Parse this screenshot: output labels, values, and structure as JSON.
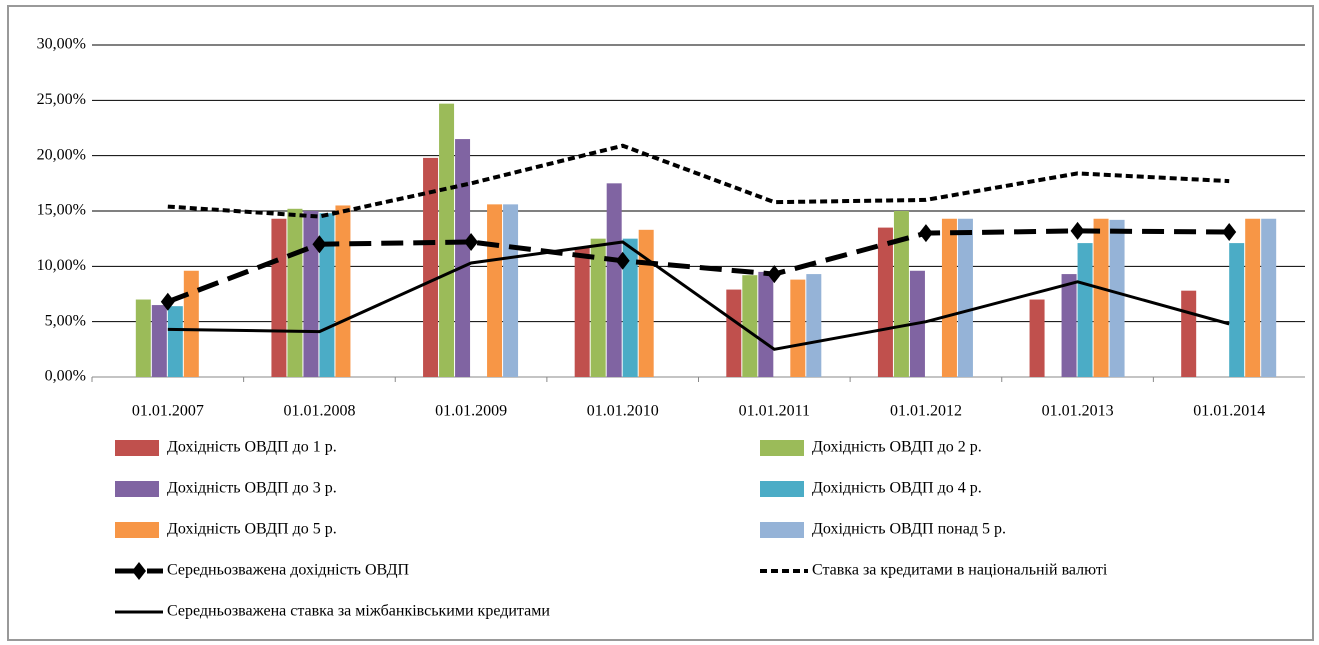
{
  "chart_data": {
    "type": "bar",
    "categories": [
      "01.01.2007",
      "01.01.2008",
      "01.01.2009",
      "01.01.2010",
      "01.01.2011",
      "01.01.2012",
      "01.01.2013",
      "01.01.2014"
    ],
    "ylim": [
      0,
      30
    ],
    "yticks": [
      {
        "value": 0,
        "label": "0,00%"
      },
      {
        "value": 5,
        "label": "5,00%"
      },
      {
        "value": 10,
        "label": "10,00%"
      },
      {
        "value": 15,
        "label": "15,00%"
      },
      {
        "value": 20,
        "label": "20,00%"
      },
      {
        "value": 25,
        "label": "25,00%"
      },
      {
        "value": 30,
        "label": "30,00%"
      }
    ],
    "grid": true,
    "series": [
      {
        "name": "Дохідність ОВДП до 1 р.",
        "type": "bar",
        "color": "#c0504d",
        "values": [
          null,
          14.3,
          19.8,
          11.7,
          7.9,
          13.5,
          7.0,
          7.8
        ]
      },
      {
        "name": "Дохідність ОВДП до 2 р.",
        "type": "bar",
        "color": "#9bbb59",
        "values": [
          7.0,
          15.2,
          24.7,
          12.5,
          9.2,
          15.0,
          null,
          null
        ]
      },
      {
        "name": "Дохідність ОВДП до 3 р.",
        "type": "bar",
        "color": "#8064a2",
        "values": [
          6.5,
          15.0,
          21.5,
          17.5,
          9.5,
          9.6,
          9.3,
          null
        ]
      },
      {
        "name": "Дохідність ОВДП до 4 р.",
        "type": "bar",
        "color": "#4bacc6",
        "values": [
          6.4,
          14.8,
          null,
          12.5,
          null,
          null,
          12.1,
          12.1
        ]
      },
      {
        "name": "Дохідність ОВДП до 5 р.",
        "type": "bar",
        "color": "#f79646",
        "values": [
          9.6,
          15.5,
          15.6,
          13.3,
          8.8,
          14.3,
          14.3,
          14.3
        ]
      },
      {
        "name": "Дохідність ОВДП понад 5 р.",
        "type": "bar",
        "color": "#95b3d7",
        "values": [
          null,
          null,
          15.6,
          null,
          9.3,
          14.3,
          14.2,
          14.3
        ]
      },
      {
        "name": "Середньозважена дохідність ОВДП",
        "type": "line",
        "color": "#000000",
        "dash": "dashed",
        "marker": "diamond",
        "values": [
          6.8,
          12.0,
          12.2,
          10.5,
          9.3,
          13.0,
          13.2,
          13.1
        ]
      },
      {
        "name": "Ставка за кредитами в національній валюті",
        "type": "line",
        "color": "#000000",
        "dash": "dotted",
        "values": [
          15.4,
          14.5,
          17.5,
          20.9,
          15.8,
          16.0,
          18.4,
          17.7
        ]
      },
      {
        "name": "Середньозважена ставка за міжбанківськими кредитами",
        "type": "line",
        "color": "#000000",
        "dash": "solid",
        "values": [
          4.3,
          4.1,
          10.3,
          12.2,
          2.5,
          5.0,
          8.6,
          4.8
        ]
      }
    ]
  }
}
